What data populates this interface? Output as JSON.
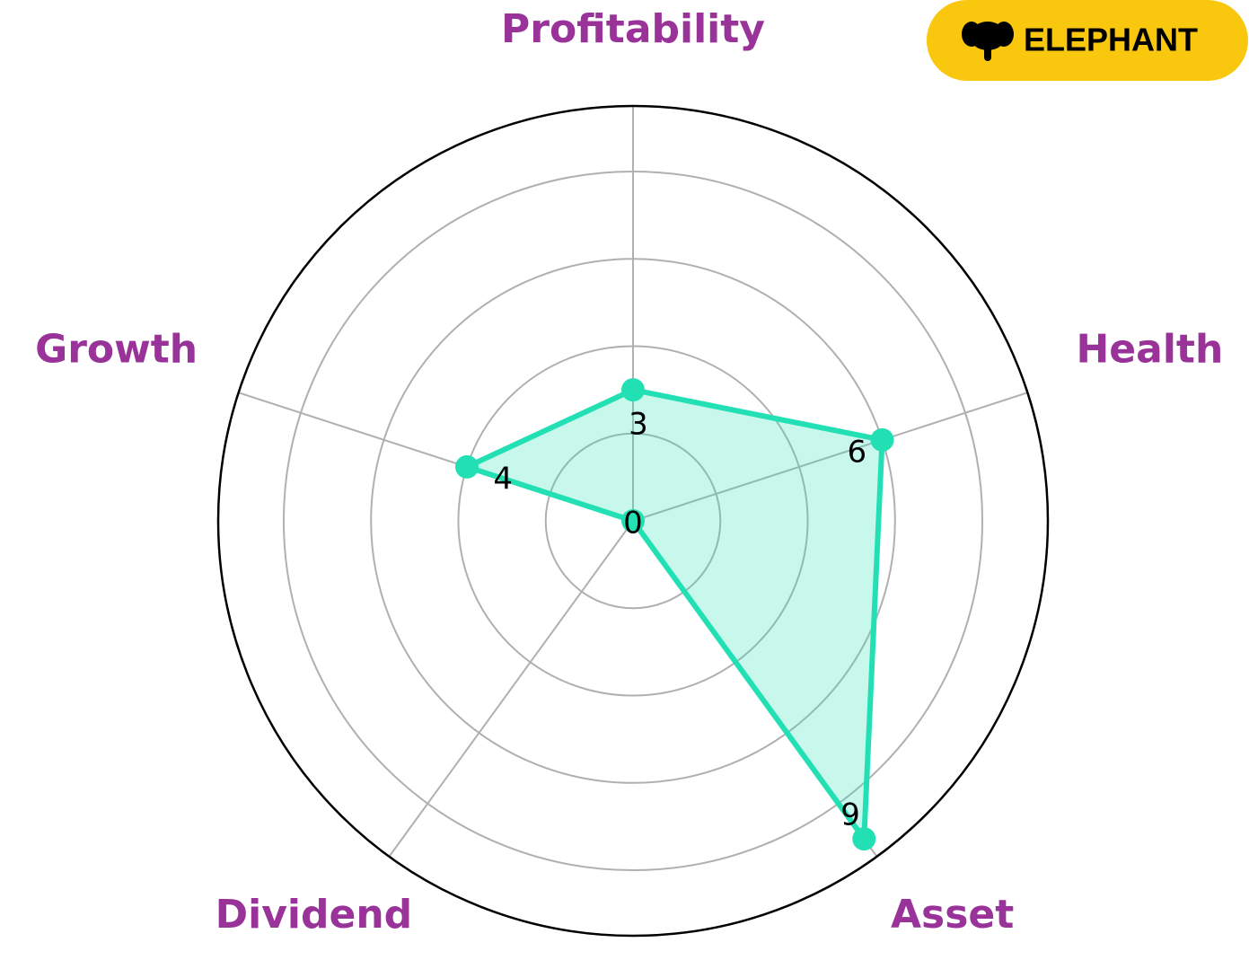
{
  "brand": {
    "label": "ELEPHANT"
  },
  "chart_data": {
    "type": "radar",
    "categories": [
      "Profitability",
      "Health",
      "Asset",
      "Dividend",
      "Growth"
    ],
    "values": [
      3,
      6,
      9,
      0,
      4
    ],
    "color": "#22e0b4",
    "label_color": "#993399",
    "ylim": [
      0,
      9.5
    ],
    "yticks": [
      2,
      4,
      6,
      8
    ],
    "grid": true
  }
}
